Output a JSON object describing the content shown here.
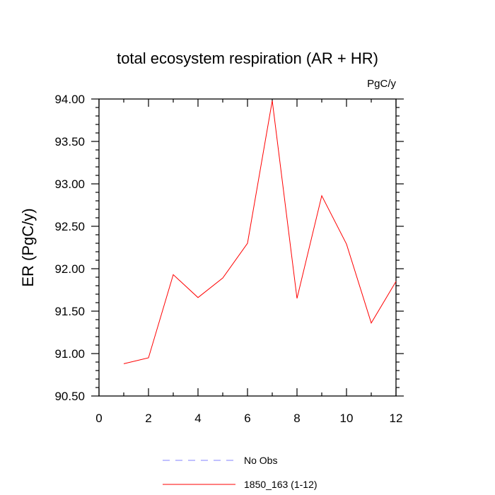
{
  "chart_data": {
    "type": "line",
    "title": "total ecosystem respiration (AR + HR)",
    "units_label": "PgC/y",
    "ylabel": "ER  (PgC/y)",
    "xlabel": "",
    "xlim": [
      0,
      12
    ],
    "ylim": [
      90.5,
      94.0
    ],
    "x_ticks": [
      0,
      2,
      4,
      6,
      8,
      10,
      12
    ],
    "x_tick_labels": [
      "0",
      "2",
      "4",
      "6",
      "8",
      "10",
      "12"
    ],
    "y_ticks": [
      90.5,
      91.0,
      91.5,
      92.0,
      92.5,
      93.0,
      93.5,
      94.0
    ],
    "y_tick_labels": [
      "90.50",
      "91.00",
      "91.50",
      "92.00",
      "92.50",
      "93.00",
      "93.50",
      "94.00"
    ],
    "grid": false,
    "series": [
      {
        "name": "1850_163 (1-12)",
        "color": "#ff0000",
        "style": "solid",
        "x": [
          1,
          2,
          3,
          4,
          5,
          6,
          7,
          8,
          9,
          10,
          11,
          12
        ],
        "y": [
          90.88,
          90.95,
          91.93,
          91.66,
          91.89,
          92.3,
          93.98,
          91.65,
          92.86,
          92.29,
          91.36,
          91.85
        ]
      }
    ],
    "legend": {
      "placement": "bottom-center",
      "entries": [
        {
          "label": "No Obs",
          "color": "#8080ff",
          "style": "dashed"
        },
        {
          "label": "1850_163 (1-12)",
          "color": "#ff0000",
          "style": "solid"
        }
      ]
    }
  }
}
